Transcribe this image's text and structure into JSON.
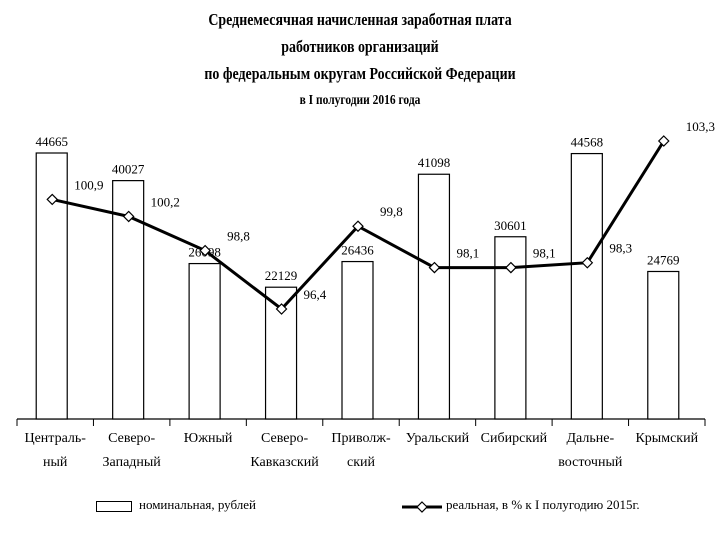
{
  "title_lines": [
    "Среднемесячная начисленная заработная плата",
    "работников организаций",
    "по федеральным округам Российской Федерации"
  ],
  "subtitle": "в I полугодии 2016 года",
  "chart_data": {
    "type": "bar",
    "categories": [
      [
        "Централь-",
        "ный"
      ],
      [
        "Северо-",
        "Западный"
      ],
      [
        "Южный"
      ],
      [
        "Северо-",
        "Кавказский"
      ],
      [
        "Приволж-",
        "ский"
      ],
      [
        "Уральский"
      ],
      [
        "Сибирский"
      ],
      [
        "Дальне-",
        "восточный"
      ],
      [
        "Крымский"
      ]
    ],
    "series": [
      {
        "name": "номинальная, рублей",
        "type": "bar",
        "values": [
          44665,
          40027,
          26098,
          22129,
          26436,
          41098,
          30601,
          44568,
          24769
        ],
        "labels": [
          "44665",
          "40027",
          "26098",
          "22129",
          "26436",
          "41098",
          "30601",
          "44568",
          "24769"
        ]
      },
      {
        "name": "реальная, в % к I полугодию 2015г.",
        "type": "line",
        "values": [
          100.9,
          100.2,
          98.8,
          96.4,
          99.8,
          98.1,
          98.1,
          98.3,
          103.3
        ],
        "labels": [
          "100,9",
          "100,2",
          "98,8",
          "96,4",
          "99,8",
          "98,1",
          "98,1",
          "98,3",
          "103,3"
        ]
      }
    ],
    "bar_axis": [
      0,
      50000
    ],
    "line_axis": [
      90,
      104
    ],
    "grid": false,
    "legend_position": "bottom"
  }
}
